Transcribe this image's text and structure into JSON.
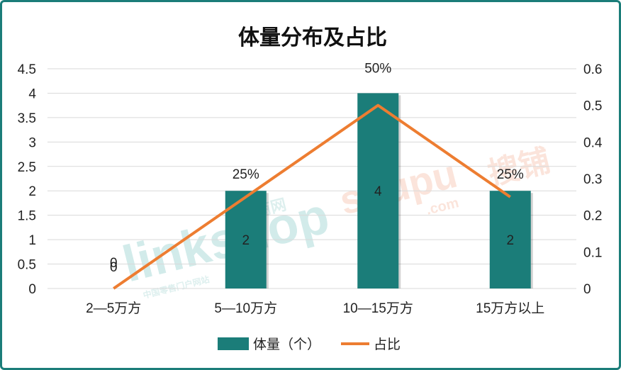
{
  "chart_data": {
    "type": "bar",
    "title": "体量分布及占比",
    "categories": [
      "2—5万方",
      "5—10万方",
      "10—15万方",
      "15万方以上"
    ],
    "series": [
      {
        "name": "体量（个）",
        "type": "bar",
        "axis": "left",
        "values": [
          0,
          2,
          4,
          2
        ],
        "labels": [
          "0",
          "2",
          "4",
          "2"
        ],
        "color": "#1b7d79"
      },
      {
        "name": "占比",
        "type": "line",
        "axis": "right",
        "values": [
          0,
          0.25,
          0.5,
          0.25
        ],
        "labels": [
          "0",
          "25%",
          "50%",
          "25%"
        ],
        "color": "#ed7d31"
      }
    ],
    "left_axis": {
      "ylim": [
        0,
        4.5
      ],
      "ticks": [
        "0",
        "0.5",
        "1",
        "1.5",
        "2",
        "2.5",
        "3",
        "3.5",
        "4",
        "4.5"
      ]
    },
    "right_axis": {
      "ylim": [
        0,
        0.6
      ],
      "ticks": [
        "0",
        "0.1",
        "0.2",
        "0.3",
        "0.4",
        "0.5",
        "0.6"
      ]
    },
    "grid": true,
    "legend": "bottom"
  },
  "watermarks": {
    "linkshop": "linkshop",
    "linkshop_cn": "联商网",
    "linkshop_sub": "中国零售门户网站",
    "soupu": "soupu",
    "soupu_cn": "搜铺",
    "soupu_com": ".com"
  },
  "colors": {
    "border": "#1b7d79",
    "bar": "#1b7d79",
    "line": "#ed7d31",
    "grid": "#d9d9d9"
  }
}
